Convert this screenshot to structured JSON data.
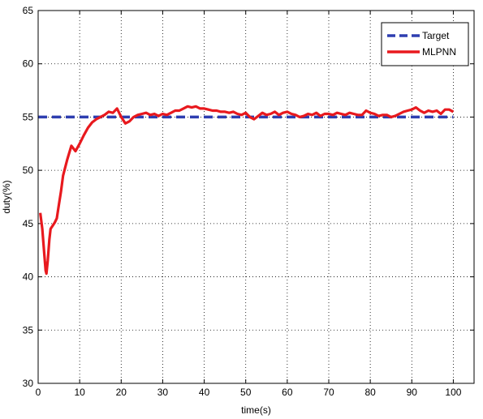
{
  "chart_data": {
    "type": "line",
    "title": "",
    "xlabel": "time(s)",
    "ylabel": "duty(%)",
    "xlim": [
      0,
      105
    ],
    "ylim": [
      30,
      65
    ],
    "xticks": [
      0,
      10,
      20,
      30,
      40,
      50,
      60,
      70,
      80,
      90,
      100
    ],
    "yticks": [
      30,
      35,
      40,
      45,
      50,
      55,
      60,
      65
    ],
    "grid": true,
    "legend_position": "top-right",
    "series": [
      {
        "name": "Target",
        "color": "#2e3eb0",
        "style": "dashed",
        "x": [
          0,
          100
        ],
        "y": [
          55,
          55
        ]
      },
      {
        "name": "MLPNN",
        "color": "#e8191e",
        "style": "solid",
        "x": [
          0.5,
          1.0,
          1.5,
          1.8,
          2.0,
          2.3,
          2.7,
          3.0,
          3.5,
          4.0,
          4.5,
          5.0,
          5.5,
          6.0,
          7.0,
          8.0,
          9.0,
          10.0,
          11.0,
          12.0,
          13.0,
          14.0,
          15.0,
          16.0,
          17.0,
          18.0,
          19.0,
          20.0,
          21.0,
          22.0,
          23.0,
          24.0,
          25.0,
          26.0,
          27.0,
          28.0,
          29.0,
          30.0,
          31.0,
          32.0,
          33.0,
          34.0,
          35.0,
          36.0,
          37.0,
          38.0,
          39.0,
          40.0,
          41.0,
          42.0,
          43.0,
          44.0,
          45.0,
          46.0,
          47.0,
          48.0,
          49.0,
          50.0,
          51.0,
          52.0,
          53.0,
          54.0,
          55.0,
          56.0,
          57.0,
          58.0,
          59.0,
          60.0,
          61.0,
          62.0,
          63.0,
          64.0,
          65.0,
          66.0,
          67.0,
          68.0,
          69.0,
          70.0,
          71.0,
          72.0,
          73.0,
          74.0,
          75.0,
          76.0,
          77.0,
          78.0,
          79.0,
          80.0,
          81.0,
          82.0,
          83.0,
          84.0,
          85.0,
          86.0,
          87.0,
          88.0,
          89.0,
          90.0,
          91.0,
          92.0,
          93.0,
          94.0,
          95.0,
          96.0,
          97.0,
          98.0,
          99.0,
          100.0
        ],
        "y": [
          46.0,
          44.5,
          42.0,
          40.6,
          40.3,
          41.5,
          43.5,
          44.5,
          44.8,
          45.1,
          45.5,
          46.8,
          48.0,
          49.5,
          51.0,
          52.3,
          51.8,
          52.5,
          53.3,
          54.0,
          54.5,
          54.8,
          55.0,
          55.2,
          55.5,
          55.4,
          55.8,
          55.0,
          54.4,
          54.6,
          55.0,
          55.2,
          55.3,
          55.4,
          55.2,
          55.3,
          55.1,
          55.3,
          55.2,
          55.4,
          55.6,
          55.6,
          55.8,
          56.0,
          55.9,
          56.0,
          55.8,
          55.8,
          55.7,
          55.6,
          55.6,
          55.5,
          55.5,
          55.4,
          55.5,
          55.3,
          55.2,
          55.4,
          55.0,
          54.8,
          55.1,
          55.4,
          55.2,
          55.3,
          55.5,
          55.2,
          55.4,
          55.5,
          55.3,
          55.2,
          55.0,
          55.1,
          55.3,
          55.2,
          55.4,
          55.1,
          55.3,
          55.3,
          55.2,
          55.4,
          55.3,
          55.2,
          55.4,
          55.3,
          55.2,
          55.2,
          55.6,
          55.4,
          55.3,
          55.1,
          55.2,
          55.2,
          55.0,
          55.1,
          55.3,
          55.5,
          55.6,
          55.7,
          55.9,
          55.6,
          55.4,
          55.6,
          55.5,
          55.6,
          55.3,
          55.7,
          55.7,
          55.5
        ]
      }
    ]
  }
}
